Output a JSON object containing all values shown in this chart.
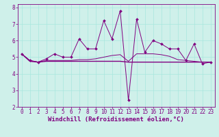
{
  "xlabel": "Windchill (Refroidissement éolien,°C)",
  "background_color": "#cff0ea",
  "line_color": "#800080",
  "xlim_min": -0.5,
  "xlim_max": 23.5,
  "ylim_min": 2.0,
  "ylim_max": 8.2,
  "xticks": [
    0,
    1,
    2,
    3,
    4,
    5,
    6,
    7,
    8,
    9,
    10,
    11,
    12,
    13,
    14,
    15,
    16,
    17,
    18,
    19,
    20,
    21,
    22,
    23
  ],
  "yticks": [
    2,
    3,
    4,
    5,
    6,
    7,
    8
  ],
  "hours": [
    0,
    1,
    2,
    3,
    4,
    5,
    6,
    7,
    8,
    9,
    10,
    11,
    12,
    13,
    14,
    15,
    16,
    17,
    18,
    19,
    20,
    21,
    22,
    23
  ],
  "line1": [
    5.2,
    4.8,
    4.7,
    4.9,
    5.2,
    5.0,
    5.0,
    6.1,
    5.5,
    5.5,
    7.2,
    6.1,
    7.8,
    2.4,
    7.3,
    5.3,
    6.0,
    5.8,
    5.5,
    5.5,
    4.8,
    5.8,
    4.6,
    4.7
  ],
  "line2": [
    5.2,
    4.8,
    4.7,
    4.8,
    4.8,
    4.8,
    4.8,
    4.85,
    4.85,
    4.9,
    5.0,
    5.1,
    5.15,
    4.75,
    5.2,
    5.2,
    5.2,
    5.15,
    5.05,
    4.85,
    4.8,
    4.75,
    4.7,
    4.7
  ],
  "line3": [
    5.2,
    4.75,
    4.7,
    4.75,
    4.75,
    4.75,
    4.75,
    4.75,
    4.75,
    4.75,
    4.75,
    4.75,
    4.75,
    4.7,
    4.7,
    4.7,
    4.7,
    4.7,
    4.7,
    4.7,
    4.7,
    4.7,
    4.7,
    4.7
  ],
  "grid_color": "#a8e6de",
  "font_color": "#800080",
  "tick_fontsize": 5.5,
  "xlabel_fontsize": 6.5
}
